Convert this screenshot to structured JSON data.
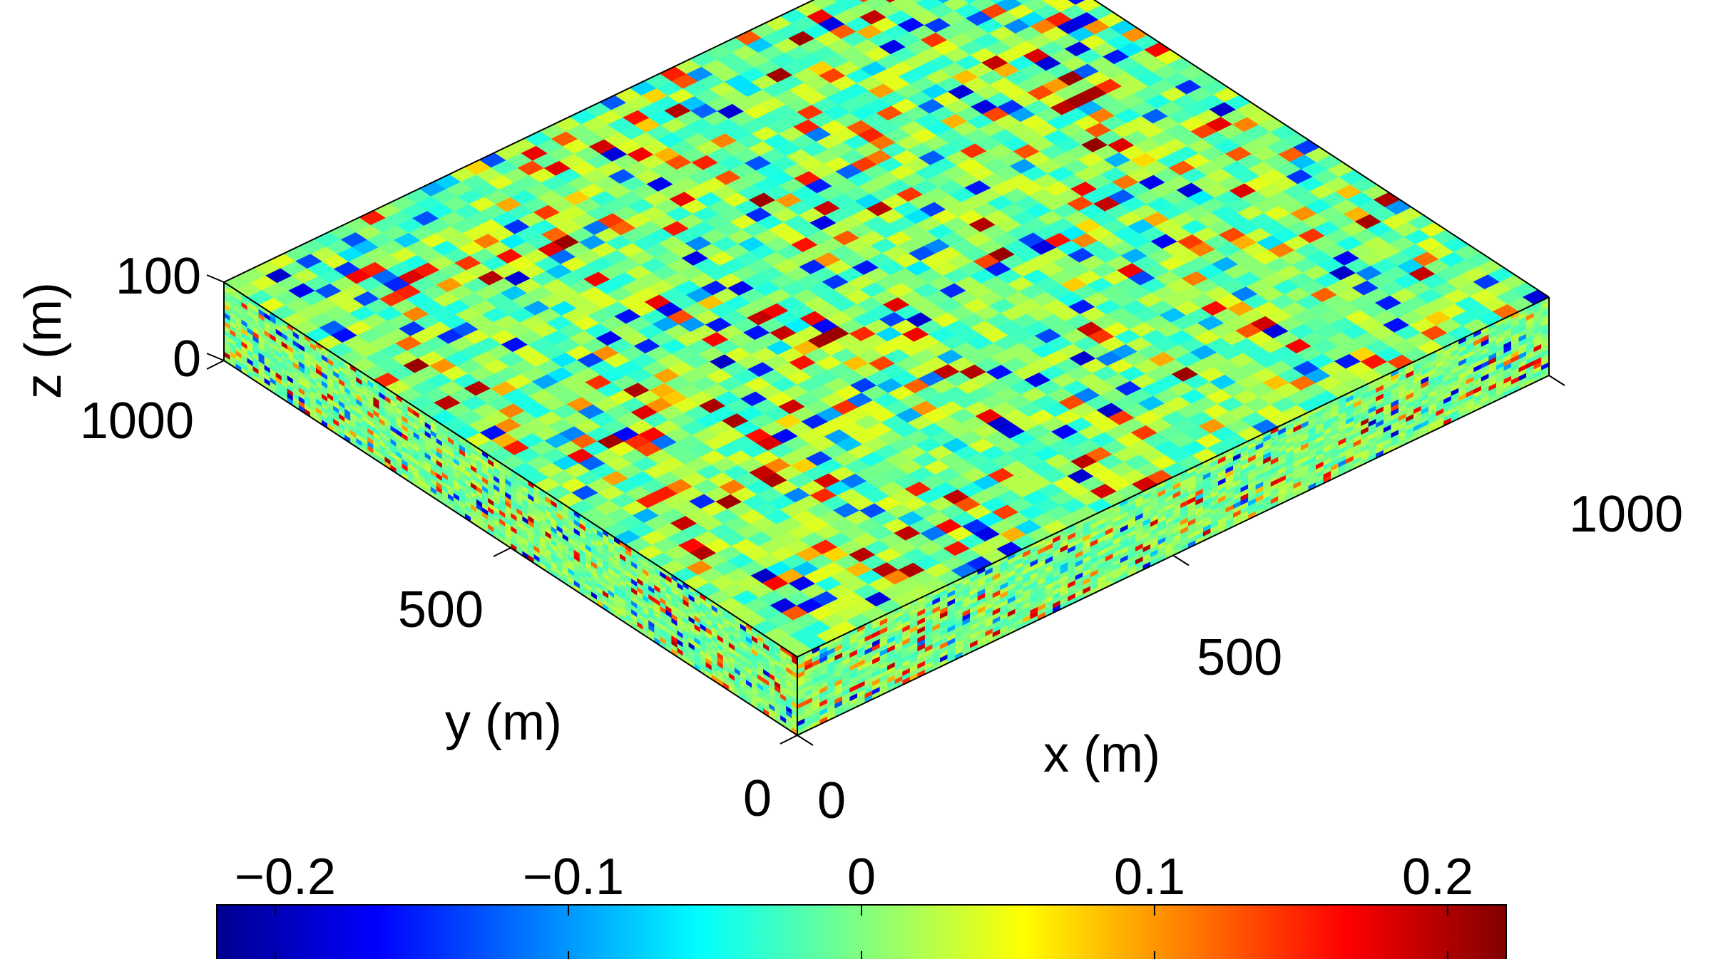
{
  "chart_data": {
    "type": "heatmap",
    "subtype": "3d-block-surface",
    "title": "",
    "axes": {
      "x": {
        "label": "x (m)",
        "lim": [
          0,
          1000
        ],
        "ticks": [
          0,
          500,
          1000
        ],
        "tick_labels": [
          "0",
          "500",
          "1000"
        ]
      },
      "y": {
        "label": "y (m)",
        "lim": [
          0,
          1000
        ],
        "ticks": [
          0,
          500,
          1000
        ],
        "tick_labels": [
          "0",
          "500",
          "1000"
        ]
      },
      "z": {
        "label": "z (m)",
        "lim": [
          0,
          100
        ],
        "ticks": [
          0,
          100
        ],
        "tick_labels": [
          "0",
          "100"
        ]
      }
    },
    "field": {
      "description_grid_cells": 50,
      "value_range": [
        -0.22,
        0.22
      ],
      "pattern": "random-correlated"
    },
    "colorbar": {
      "colormap": "jet",
      "orientation": "horizontal",
      "placement": "bottom",
      "lim": [
        -0.22,
        0.22
      ],
      "ticks": [
        -0.2,
        -0.1,
        0,
        0.1,
        0.2
      ],
      "tick_labels": [
        "−0.2",
        "−0.1",
        "0",
        "0.1",
        "0.2"
      ]
    },
    "grid": false
  }
}
